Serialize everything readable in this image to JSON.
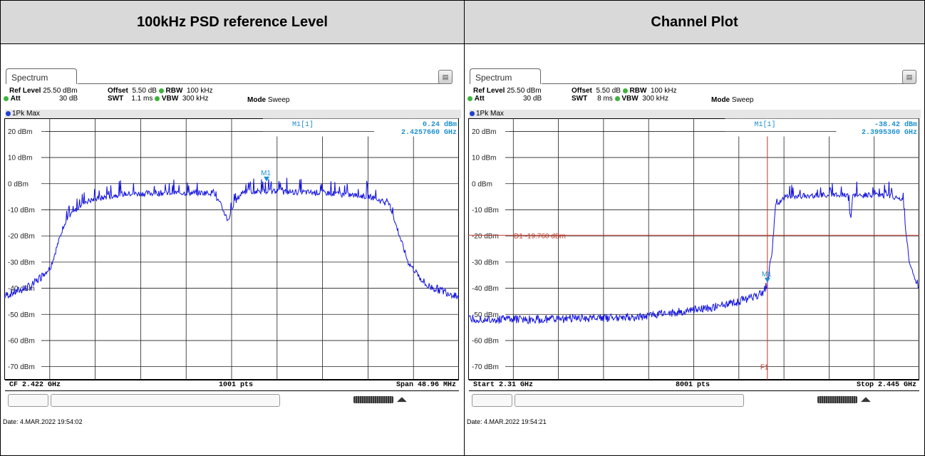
{
  "panels": [
    {
      "header": "100kHz PSD reference Level",
      "tab": "Spectrum",
      "ref_level_label": "Ref Level",
      "ref_level": "25.50 dBm",
      "att_label": "Att",
      "att": "30 dB",
      "offset_label": "Offset",
      "offset": "5.50 dB",
      "swt_label": "SWT",
      "swt": "1.1 ms",
      "rbw_label": "RBW",
      "rbw": "100 kHz",
      "vbw_label": "VBW",
      "vbw": "300 kHz",
      "mode_label": "Mode",
      "mode": "Sweep",
      "trace": "1Pk Max",
      "marker_label": "M1[1]",
      "marker_level": "0.24 dBm",
      "marker_freq": "2.4257660 GHz",
      "marker_tag": "M1",
      "footer_left": "CF 2.422 GHz",
      "footer_center": "1001 pts",
      "footer_right": "Span 48.96 MHz",
      "date": "Date: 4.MAR.2022  19:54:02"
    },
    {
      "header": "Channel Plot",
      "tab": "Spectrum",
      "ref_level_label": "Ref Level",
      "ref_level": "25.50 dBm",
      "att_label": "Att",
      "att": "30 dB",
      "offset_label": "Offset",
      "offset": "5.50 dB",
      "swt_label": "SWT",
      "swt": "8 ms",
      "rbw_label": "RBW",
      "rbw": "100 kHz",
      "vbw_label": "VBW",
      "vbw": "300 kHz",
      "mode_label": "Mode",
      "mode": "Sweep",
      "trace": "1Pk Max",
      "marker_label": "M1[1]",
      "marker_level": "-38.42 dBm",
      "marker_freq": "2.3995360 GHz",
      "marker_tag": "M1",
      "line_label": "D1  -19.760 dBm",
      "freq_line_label": "F1",
      "footer_left": "Start 2.31 GHz",
      "footer_center": "8001 pts",
      "footer_right": "Stop 2.445 GHz",
      "date": "Date: 4.MAR.2022  19:54:21"
    }
  ],
  "y_axis_labels": [
    "20 dBm",
    "10 dBm",
    "0 dBm",
    "-10 dBm",
    "-20 dBm",
    "-30 dBm",
    "-40 dBm",
    "-50 dBm",
    "-60 dBm",
    "-70 dBm"
  ],
  "colors": {
    "trace": "#1010e0",
    "marker": "#1e90d0",
    "limit_line": "#c0392b",
    "header_bg": "#d9d9d9"
  },
  "chart_data": [
    {
      "type": "line",
      "x_range_ghz": [
        2.39752,
        2.44648
      ],
      "ylim": [
        -75,
        25
      ],
      "grid": true,
      "series": [
        {
          "x": [
            2.3975,
            2.4005,
            2.4025,
            2.404,
            2.406,
            2.41,
            2.415,
            2.42,
            2.4208,
            2.4216,
            2.4224,
            2.4232,
            2.426,
            2.432,
            2.437,
            2.439,
            2.441,
            2.443,
            2.4465
          ],
          "values": [
            -43,
            -39,
            -32,
            -15,
            -7,
            -4,
            -3.5,
            -3.5,
            -8,
            -14,
            -7,
            -3,
            -3,
            -3.5,
            -5,
            -8,
            -30,
            -39,
            -43
          ]
        }
      ],
      "marker": {
        "x": 2.425766,
        "y": 0.24
      }
    },
    {
      "type": "line",
      "x_range_ghz": [
        2.31,
        2.445
      ],
      "ylim": [
        -75,
        25
      ],
      "grid": true,
      "series": [
        {
          "x": [
            2.31,
            2.33,
            2.36,
            2.38,
            2.39,
            2.398,
            2.3995,
            2.401,
            2.402,
            2.405,
            2.415,
            2.4235,
            2.4245,
            2.425,
            2.435,
            2.44,
            2.442,
            2.445
          ],
          "values": [
            -52,
            -52,
            -51,
            -48,
            -45.5,
            -42,
            -38.4,
            -25,
            -8,
            -5,
            -4.5,
            -4,
            -13,
            -4.5,
            -4.5,
            -6,
            -30,
            -40
          ]
        }
      ],
      "marker": {
        "x": 2.399536,
        "y": -38.42
      },
      "limit_line_dbm": -19.76,
      "freq_line_ghz": 2.399536
    }
  ]
}
